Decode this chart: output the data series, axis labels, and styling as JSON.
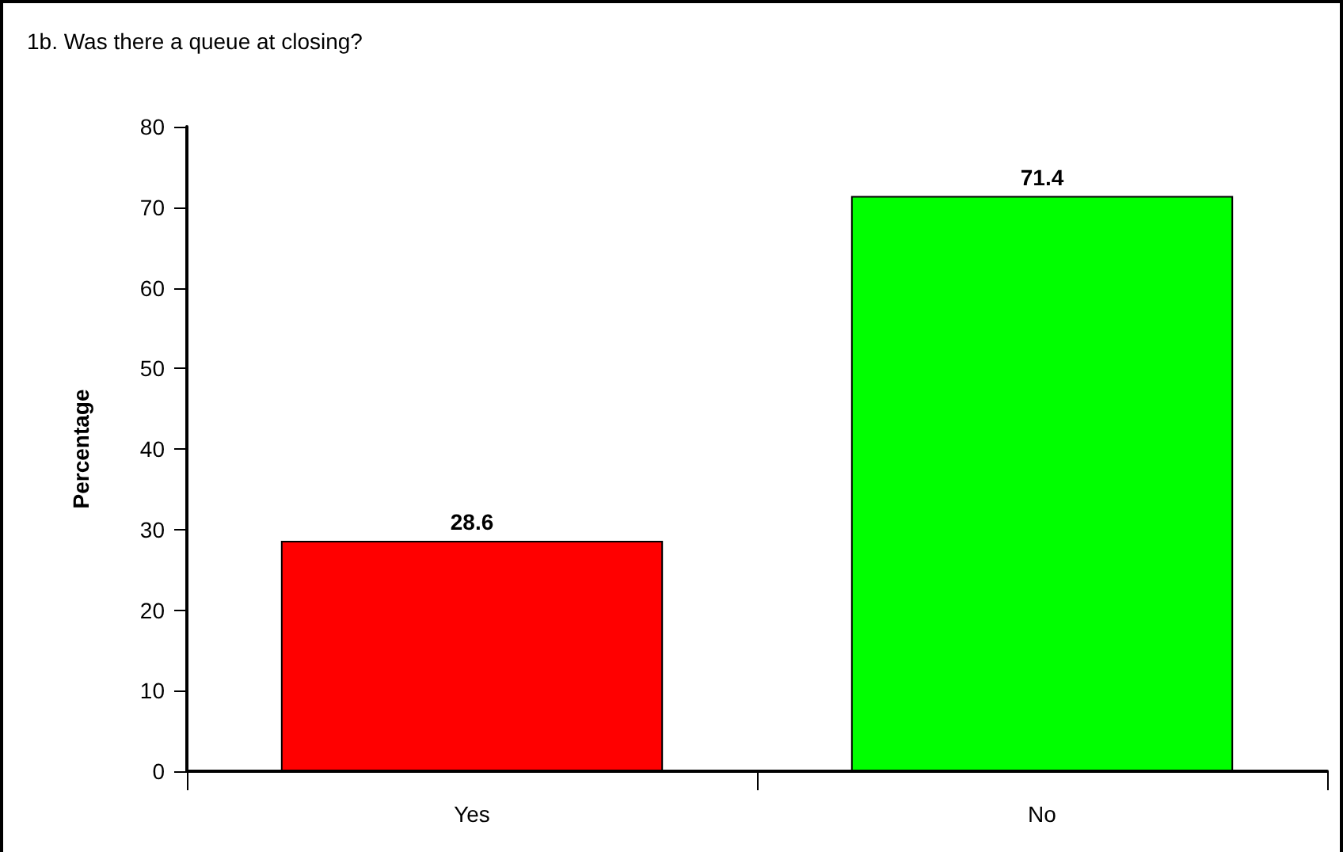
{
  "chart_data": {
    "type": "bar",
    "title": "1b. Was there a queue at closing?",
    "ylabel": "Percentage",
    "categories": [
      "Yes",
      "No"
    ],
    "values": [
      28.6,
      71.4
    ],
    "colors": [
      "#ff0000",
      "#00ff00"
    ],
    "ylim": [
      0,
      80
    ],
    "yticks": [
      0,
      10,
      20,
      30,
      40,
      50,
      60,
      70,
      80
    ],
    "data_labels": true,
    "grid": false
  }
}
